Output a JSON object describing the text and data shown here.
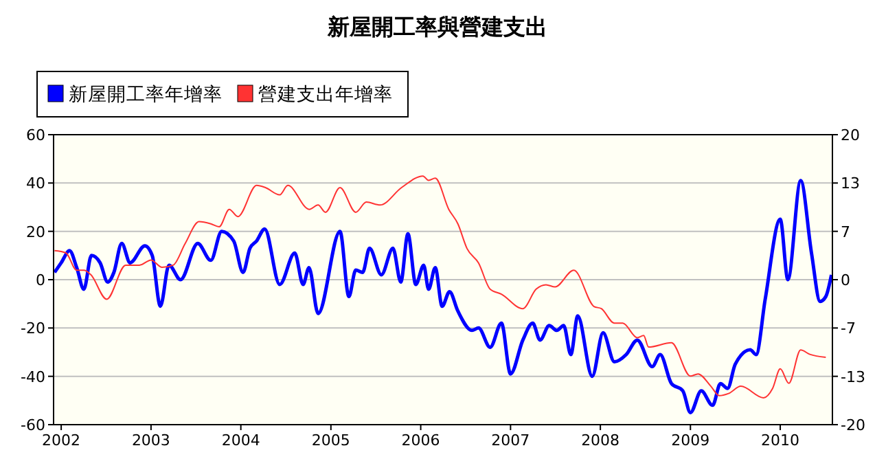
{
  "chart_data": {
    "type": "line",
    "title": "新屋開工率與營建支出",
    "xlim": [
      "2001-12-01",
      "2010-08-01"
    ],
    "xticks": [
      "2002",
      "2003",
      "2004",
      "2005",
      "2006",
      "2007",
      "2008",
      "2009",
      "2010"
    ],
    "ylim": [
      -60,
      60
    ],
    "yticks": [
      -60,
      -40,
      -20,
      0,
      20,
      40,
      60
    ],
    "y2lim": [
      -20,
      20
    ],
    "y2ticks": [
      -20,
      {
        "value": -13.333,
        "label": "-13"
      },
      {
        "value": -6.667,
        "label": "-7"
      },
      0,
      {
        "value": 6.667,
        "label": "7"
      },
      {
        "value": 13.333,
        "label": "13"
      },
      20
    ],
    "grid": "y",
    "legend": "top left",
    "series": [
      {
        "name": "新屋開工率年增率",
        "color": "#0000ff",
        "x": [
          "2001-12-05",
          "2002-01-01",
          "2002-02-04",
          "2002-03-05",
          "2002-04-03",
          "2002-05-04",
          "2002-06-08",
          "2002-07-09",
          "2002-08-03",
          "2002-09-04",
          "2002-10-08",
          "2002-12-07",
          "2003-01-06",
          "2003-02-08",
          "2003-03-15",
          "2003-05-01",
          "2003-07-10",
          "2003-09-01",
          "2003-10-15",
          "2003-12-03",
          "2004-01-10",
          "2004-02-07",
          "2004-03-05",
          "2004-04-07",
          "2004-06-07",
          "2004-08-07",
          "2004-09-10",
          "2004-10-04",
          "2004-11-10",
          "2005-02-07",
          "2005-03-15",
          "2005-04-12",
          "2005-05-10",
          "2005-06-07",
          "2005-07-25",
          "2005-09-10",
          "2005-10-12",
          "2005-11-10",
          "2005-12-12",
          "2006-01-13",
          "2006-02-02",
          "2006-03-01",
          "2006-03-29",
          "2006-04-28",
          "2006-06-01",
          "2006-07-28",
          "2006-08-24",
          "2006-10-10",
          "2006-11-25",
          "2007-01-01",
          "2007-02-20",
          "2007-04-01",
          "2007-05-01",
          "2007-06-07",
          "2007-07-08",
          "2007-08-05",
          "2007-09-03",
          "2007-10-01",
          "2007-11-29",
          "2008-01-12",
          "2008-02-27",
          "2008-04-15",
          "2008-05-30",
          "2008-07-30",
          "2008-08-31",
          "2008-10-16",
          "2008-12-01",
          "2009-01-01",
          "2009-02-14",
          "2009-04-01",
          "2009-05-03",
          "2009-06-01",
          "2009-07-02",
          "2009-09-01",
          "2009-09-25",
          "2009-11-01",
          "2010-01-01",
          "2010-02-01",
          "2010-03-25",
          "2010-05-08",
          "2010-06-12",
          "2010-07-05",
          "2010-07-28"
        ],
        "values": [
          3,
          7,
          12,
          5,
          -4,
          10,
          7,
          -1,
          3,
          15,
          7,
          14,
          10,
          -11,
          6,
          0,
          15,
          8,
          20,
          16,
          3,
          13,
          16,
          21,
          -2,
          11,
          -2,
          5,
          -14,
          20,
          -7,
          4,
          3,
          13,
          2,
          13,
          -1,
          19,
          -2,
          6,
          -4,
          5,
          -11,
          -5,
          -13,
          -21,
          -20,
          -28,
          -18,
          -39,
          -25,
          -18,
          -25,
          -19,
          -21,
          -19,
          -31,
          -15,
          -40,
          -22,
          -34,
          -31,
          -25,
          -36,
          -31,
          -43,
          -46,
          -55,
          -46,
          -52,
          -43,
          -45,
          -35,
          -29,
          -31,
          -8,
          25,
          0,
          41,
          11,
          -9,
          -7,
          2
        ]
      },
      {
        "name": "營建支出年增率",
        "color": "#ff3333",
        "axis": "y2",
        "x": [
          "2001-12-05",
          "2002-01-20",
          "2002-03-05",
          "2002-04-03",
          "2002-05-01",
          "2002-07-05",
          "2002-09-20",
          "2002-11-15",
          "2003-01-01",
          "2003-02-15",
          "2003-04-01",
          "2003-05-20",
          "2003-07-15",
          "2003-09-01",
          "2003-10-05",
          "2003-11-15",
          "2003-12-20",
          "2004-03-05",
          "2004-04-10",
          "2004-06-07",
          "2004-07-10",
          "2004-10-05",
          "2004-11-10",
          "2004-12-10",
          "2005-02-07",
          "2005-04-12",
          "2005-05-25",
          "2005-07-20",
          "2005-10-15",
          "2006-01-10",
          "2006-02-02",
          "2006-03-01",
          "2006-04-25",
          "2006-06-01",
          "2006-07-08",
          "2006-08-24",
          "2006-10-10",
          "2006-11-25",
          "2007-02-20",
          "2007-04-15",
          "2007-05-25",
          "2007-07-01",
          "2007-09-15",
          "2007-12-06",
          "2008-01-05",
          "2008-02-27",
          "2008-04-01",
          "2008-05-30",
          "2008-06-25",
          "2008-07-15",
          "2008-10-16",
          "2009-01-01",
          "2009-02-01",
          "2009-03-25",
          "2009-04-28",
          "2009-06-05",
          "2009-07-25",
          "2009-10-25",
          "2009-12-01",
          "2010-01-01",
          "2010-02-05",
          "2010-03-25",
          "2010-05-01",
          "2010-07-05"
        ],
        "values": [
          4,
          3.7,
          1.3,
          1.3,
          0.7,
          -2.7,
          2,
          2,
          2.7,
          1.7,
          2,
          5,
          8,
          7.7,
          7.3,
          9.7,
          8.7,
          13,
          12.7,
          11.7,
          13,
          9.7,
          10.3,
          9.3,
          12.7,
          9.3,
          10.7,
          10.3,
          12.7,
          14.3,
          13.7,
          14,
          9.7,
          7.7,
          4.3,
          2.3,
          -1.3,
          -2,
          -4,
          -1.3,
          -0.7,
          -1,
          1.3,
          -3.7,
          -4,
          -6,
          -6,
          -8,
          -7.7,
          -9.3,
          -8.7,
          -13.3,
          -13,
          -14.7,
          -16,
          -15.7,
          -14.7,
          -16.3,
          -15,
          -12.3,
          -14.3,
          -9.7,
          -10.3,
          -10.7
        ]
      }
    ]
  }
}
